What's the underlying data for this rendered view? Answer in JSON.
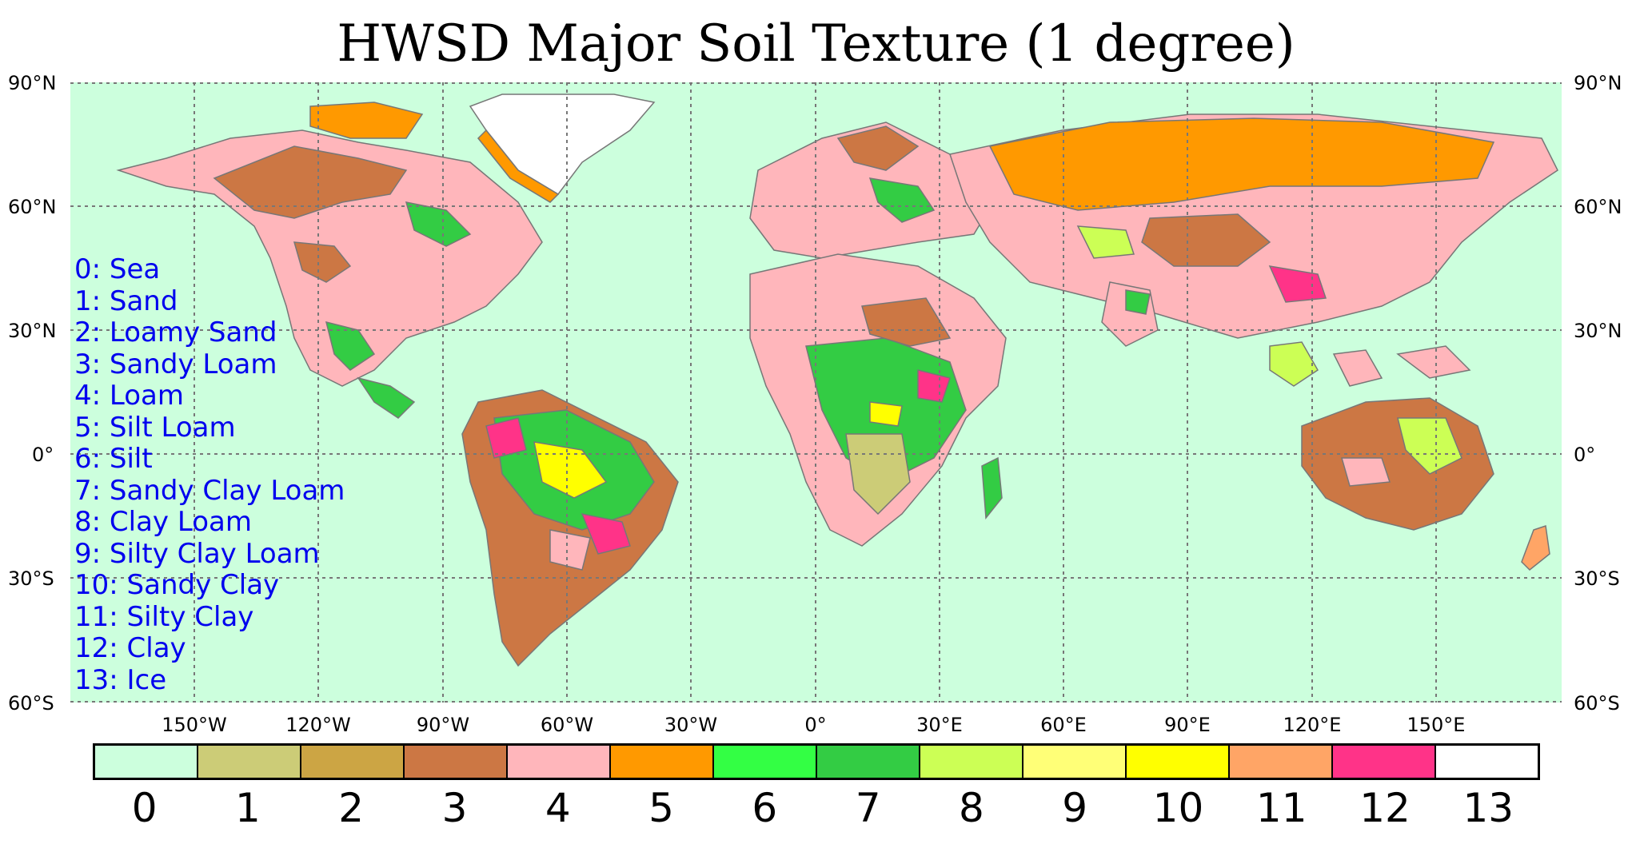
{
  "title": "HWSD Major Soil Texture (1 degree)",
  "axes": {
    "lat_left": [
      "90°N",
      "60°N",
      "30°N",
      "0°",
      "30°S",
      "60°S"
    ],
    "lat_right": [
      "90°N",
      "60°N",
      "30°N",
      "0°",
      "30°S",
      "60°S"
    ],
    "lon": [
      "150°W",
      "120°W",
      "90°W",
      "60°W",
      "30°W",
      "0°",
      "30°E",
      "60°E",
      "90°E",
      "120°E",
      "150°E"
    ]
  },
  "legend_lines": [
    "0: Sea",
    "1: Sand",
    "2: Loamy Sand",
    "3: Sandy Loam",
    "4: Loam",
    "5: Silt Loam",
    "6: Silt",
    "7: Sandy Clay Loam",
    "8: Clay Loam",
    "9: Silty Clay Loam",
    "10: Sandy Clay",
    "11: Silty Clay",
    "12: Clay",
    "13: Ice"
  ],
  "colorbar": {
    "labels": [
      "0",
      "1",
      "2",
      "3",
      "4",
      "5",
      "6",
      "7",
      "8",
      "9",
      "10",
      "11",
      "12",
      "13"
    ],
    "colors": [
      "#ccffdd",
      "#cccc77",
      "#cca544",
      "#cc7744",
      "#ffb6bb",
      "#ff9900",
      "#33ff44",
      "#33cc44",
      "#ccff55",
      "#ffff77",
      "#ffff00",
      "#ffa566",
      "#ff3388",
      "#ffffff"
    ]
  },
  "map": {
    "sea_color": "#ccffdd",
    "grid_color": "#777777"
  }
}
